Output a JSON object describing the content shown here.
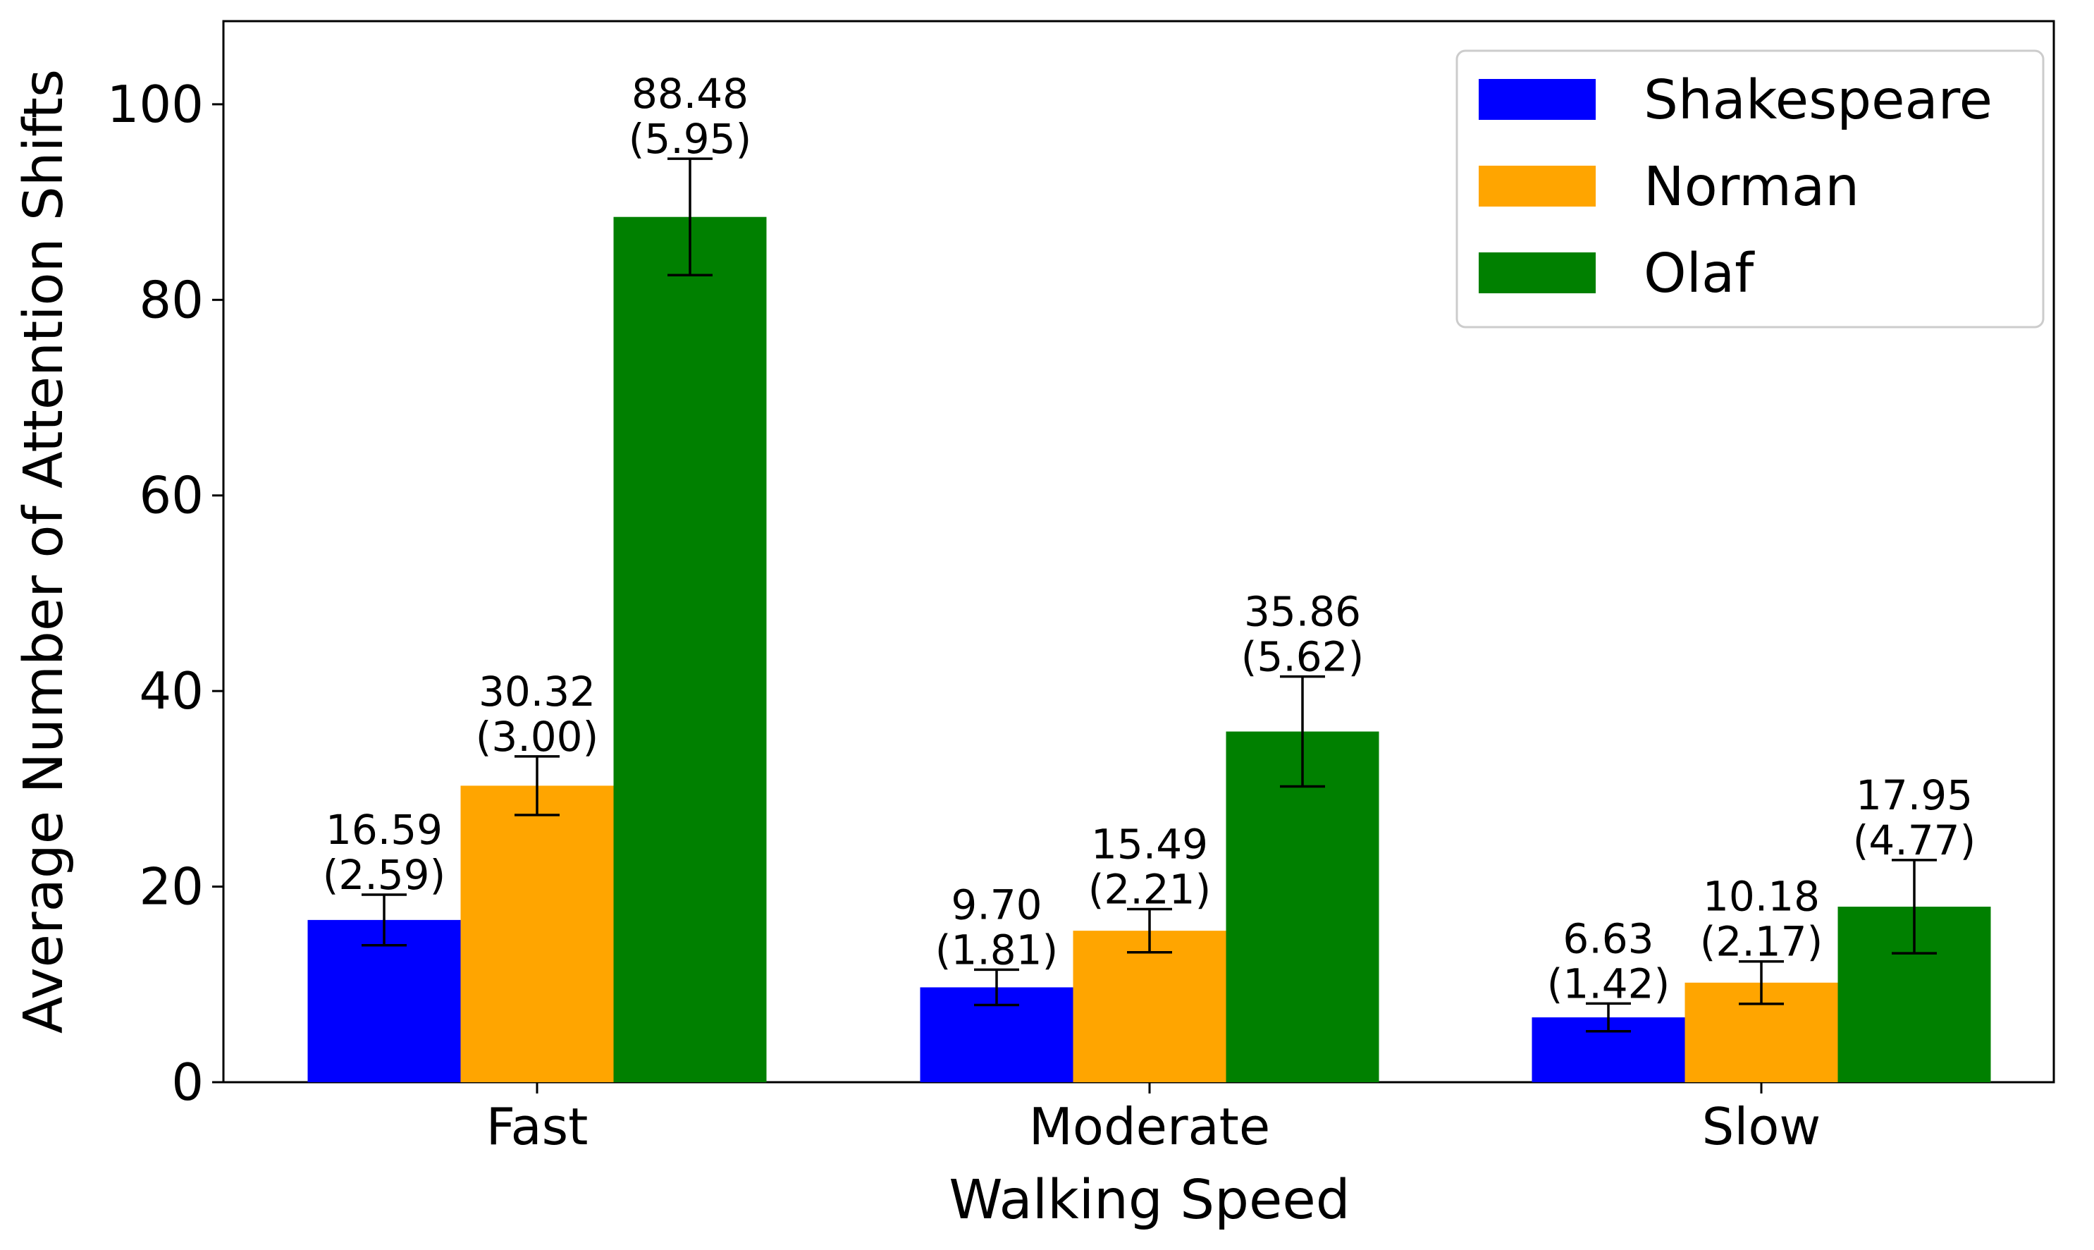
{
  "chart_data": {
    "type": "bar",
    "title": "",
    "xlabel": "Walking Speed",
    "ylabel": "Average Number of Attention Shifts",
    "categories": [
      "Fast",
      "Moderate",
      "Slow"
    ],
    "ylim": [
      0,
      108.5
    ],
    "yticks": [
      0,
      20,
      40,
      60,
      80,
      100
    ],
    "ytick_labels": [
      "0",
      "20",
      "40",
      "60",
      "80",
      "100"
    ],
    "grid": false,
    "legend_position": "top-right",
    "series": [
      {
        "name": "Shakespeare",
        "color": "#0000ff",
        "values": [
          16.59,
          9.7,
          6.63
        ],
        "errors": [
          2.59,
          1.81,
          1.42
        ],
        "labels": [
          [
            "16.59",
            "(2.59)"
          ],
          [
            "9.70",
            "(1.81)"
          ],
          [
            "6.63",
            "(1.42)"
          ]
        ]
      },
      {
        "name": "Norman",
        "color": "#ffa500",
        "values": [
          30.32,
          15.49,
          10.18
        ],
        "errors": [
          3.0,
          2.21,
          2.17
        ],
        "labels": [
          [
            "30.32",
            "(3.00)"
          ],
          [
            "15.49",
            "(2.21)"
          ],
          [
            "10.18",
            "(2.17)"
          ]
        ]
      },
      {
        "name": "Olaf",
        "color": "#008000",
        "values": [
          88.48,
          35.86,
          17.95
        ],
        "errors": [
          5.95,
          5.62,
          4.77
        ],
        "labels": [
          [
            "88.48",
            "(5.95)"
          ],
          [
            "35.86",
            "(5.62)"
          ],
          [
            "17.95",
            "(4.77)"
          ]
        ]
      }
    ]
  }
}
